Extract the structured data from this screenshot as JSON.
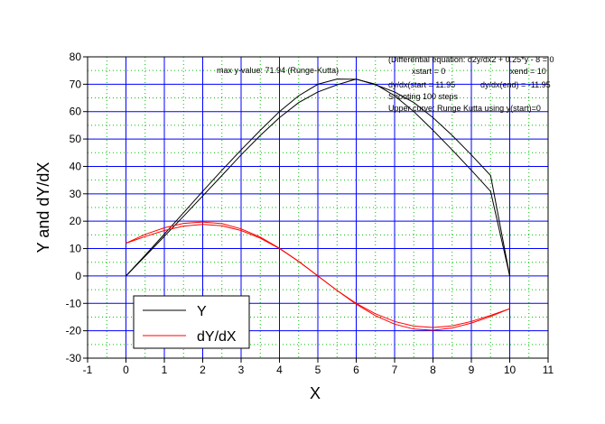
{
  "chart_data": {
    "type": "line",
    "xlabel": "X",
    "ylabel": "Y and dY/dX",
    "xlim": [
      -1,
      11
    ],
    "ylim": [
      -30,
      80
    ],
    "x_ticks": [
      "-1",
      "0",
      "1",
      "2",
      "3",
      "4",
      "5",
      "6",
      "7",
      "8",
      "9",
      "10",
      "11"
    ],
    "y_ticks": [
      "-30",
      "-20",
      "-10",
      "0",
      "10",
      "20",
      "30",
      "40",
      "50",
      "60",
      "70",
      "80"
    ],
    "grid": true,
    "legend_position": "bottom-left",
    "annotations": {
      "max_y": "max y-value: 71.94  (Runge-Kutta)",
      "equation": "(Differential equation: d2y/dx2 + 0.25*y - 8 = 0",
      "xstart": "xstart = 0",
      "xend": "xend = 10",
      "dydx_start": "dy/dx(start = 11.95",
      "dydx_end": "dy/dx(end) = -11.95",
      "shooting": "Shooting 100  steps",
      "upper_curve": "Upper curve: Runge Kutta using y(start)=0"
    },
    "series": [
      {
        "name": "Y",
        "color": "#000000",
        "x": [
          0,
          0.5,
          1,
          1.5,
          2,
          2.5,
          3,
          3.5,
          4,
          4.5,
          5,
          5.5,
          6,
          6.5,
          7,
          7.5,
          8,
          8.5,
          9,
          9.5,
          10
        ],
        "values": [
          0,
          7.2,
          14.5,
          21.8,
          29.2,
          36.7,
          44.2,
          51.3,
          57.8,
          63.3,
          67.2,
          69.8,
          71.9,
          69.8,
          67.2,
          63.3,
          57.8,
          51.3,
          44.2,
          36.7,
          0
        ],
        "values_upper": [
          0,
          7.6,
          15.3,
          23.1,
          30.9,
          38.6,
          46.0,
          53.2,
          60.0,
          65.8,
          70.0,
          71.9,
          71.8,
          70.0,
          65.8,
          60.0,
          53.2,
          46.0,
          38.6,
          30.9,
          0
        ]
      },
      {
        "name": "dY/dX",
        "color": "#ff0000",
        "x": [
          0,
          0.5,
          1,
          1.5,
          2,
          2.5,
          3,
          3.5,
          4,
          4.5,
          5,
          5.5,
          6,
          6.5,
          7,
          7.5,
          8,
          8.5,
          9,
          9.5,
          10
        ],
        "values": [
          11.95,
          14.4,
          16.6,
          18.2,
          18.8,
          18.3,
          16.6,
          13.8,
          10.0,
          5.3,
          0,
          -5.3,
          -10.0,
          -13.8,
          -16.6,
          -18.3,
          -18.8,
          -18.2,
          -16.6,
          -14.4,
          -11.95
        ],
        "values_upper": [
          11.95,
          15.2,
          17.6,
          19.2,
          19.7,
          19.1,
          17.2,
          14.2,
          10.1,
          5.3,
          0,
          -5.3,
          -10.3,
          -14.5,
          -17.6,
          -19.4,
          -19.8,
          -19.0,
          -17.2,
          -14.8,
          -11.95
        ]
      }
    ]
  }
}
